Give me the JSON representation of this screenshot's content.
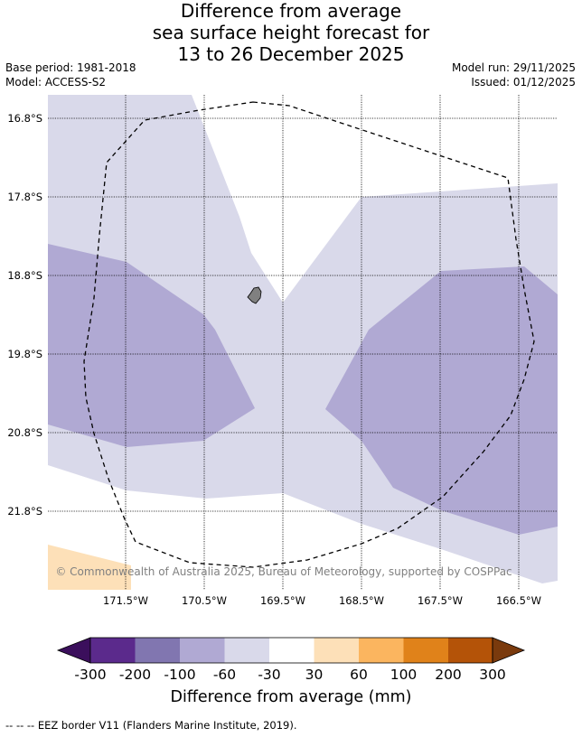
{
  "title_lines": [
    "Difference from average",
    "sea surface height forecast for",
    "13 to 26 December 2025"
  ],
  "base_period": "Base period: 1981-2018",
  "model": "Model: ACCESS-S2",
  "model_run": "Model run: 29/11/2025",
  "issued": "Issued: 01/12/2025",
  "latitude_labels": [
    "16.8°S",
    "17.8°S",
    "18.8°S",
    "19.8°S",
    "20.8°S",
    "21.8°S"
  ],
  "longitude_labels": [
    "171.5°W",
    "170.5°W",
    "169.5°W",
    "168.5°W",
    "167.5°W",
    "166.5°W"
  ],
  "copyright": "© Commonwealth of Australia 2025, Bureau of Meteorology, supported by COSPPac",
  "colorbar": {
    "title": "Difference from average (mm)",
    "tick_labels": [
      "-300",
      "-200",
      "-100",
      "-60",
      "-30",
      "30",
      "60",
      "100",
      "200",
      "300"
    ],
    "colors": [
      "#3b0f5c",
      "#5b2a8c",
      "#8176b0",
      "#b0a9d3",
      "#d9d9ea",
      "#ffffff",
      "#fde0b8",
      "#fbb55f",
      "#e0821a",
      "#b45308",
      "#7a3a0d"
    ]
  },
  "footnote": "--  --  -- EEZ border V11 (Flanders Marine Institute, 2019)."
}
